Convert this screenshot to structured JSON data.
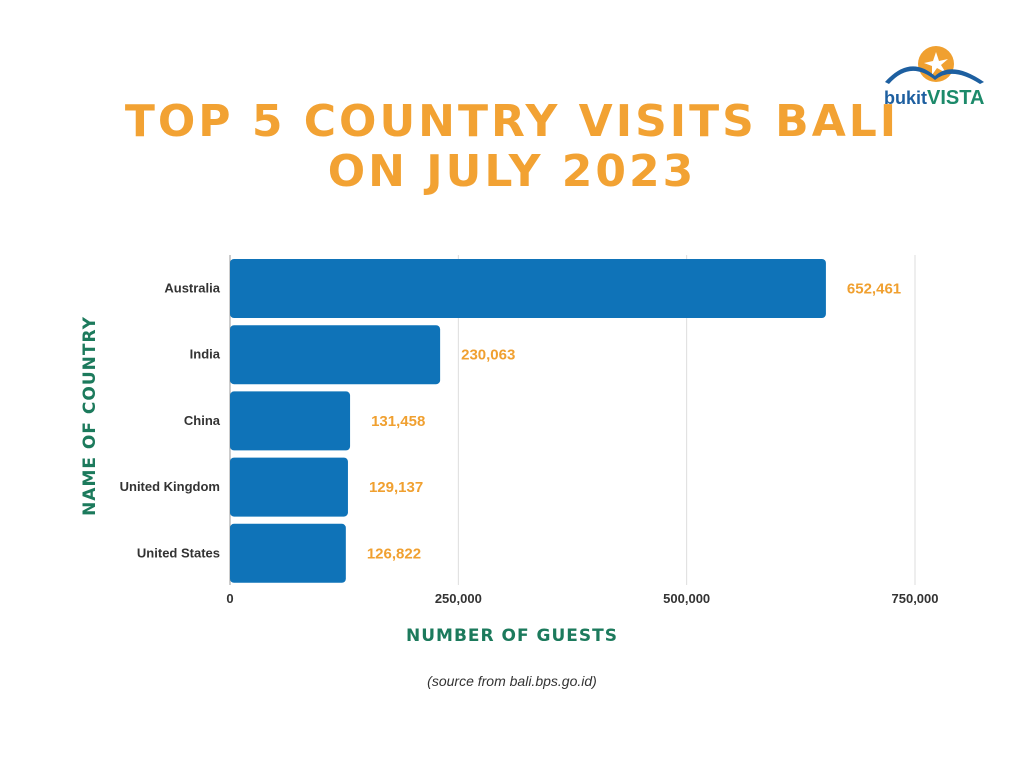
{
  "logo": {
    "text_left": "bukit",
    "text_right": "VISTA"
  },
  "source_note": "(source from bali.bps.go.id)",
  "colors": {
    "bar": "#0f73b8",
    "title": "#f2a233",
    "axis_title": "#1c7a5c",
    "data_label": "#f0a030"
  },
  "chart_data": {
    "type": "bar",
    "orientation": "horizontal",
    "title_lines": [
      "TOP 5 COUNTRY VISITS BALI",
      "ON JULY 2023"
    ],
    "categories": [
      "Australia",
      "India",
      "China",
      "United Kingdom",
      "United States"
    ],
    "values": [
      652461,
      230063,
      131458,
      129137,
      126822
    ],
    "data_labels": [
      "652,461",
      "230,063",
      "131,458",
      "129,137",
      "126,822"
    ],
    "xlabel": "NUMBER OF GUESTS",
    "ylabel": "NAME OF COUNTRY",
    "xlim": [
      0,
      750000
    ],
    "xticks": [
      0,
      250000,
      500000,
      750000
    ],
    "xtick_labels": [
      "0",
      "250,000",
      "500,000",
      "750,000"
    ],
    "grid": "vertical",
    "legend": "none"
  }
}
